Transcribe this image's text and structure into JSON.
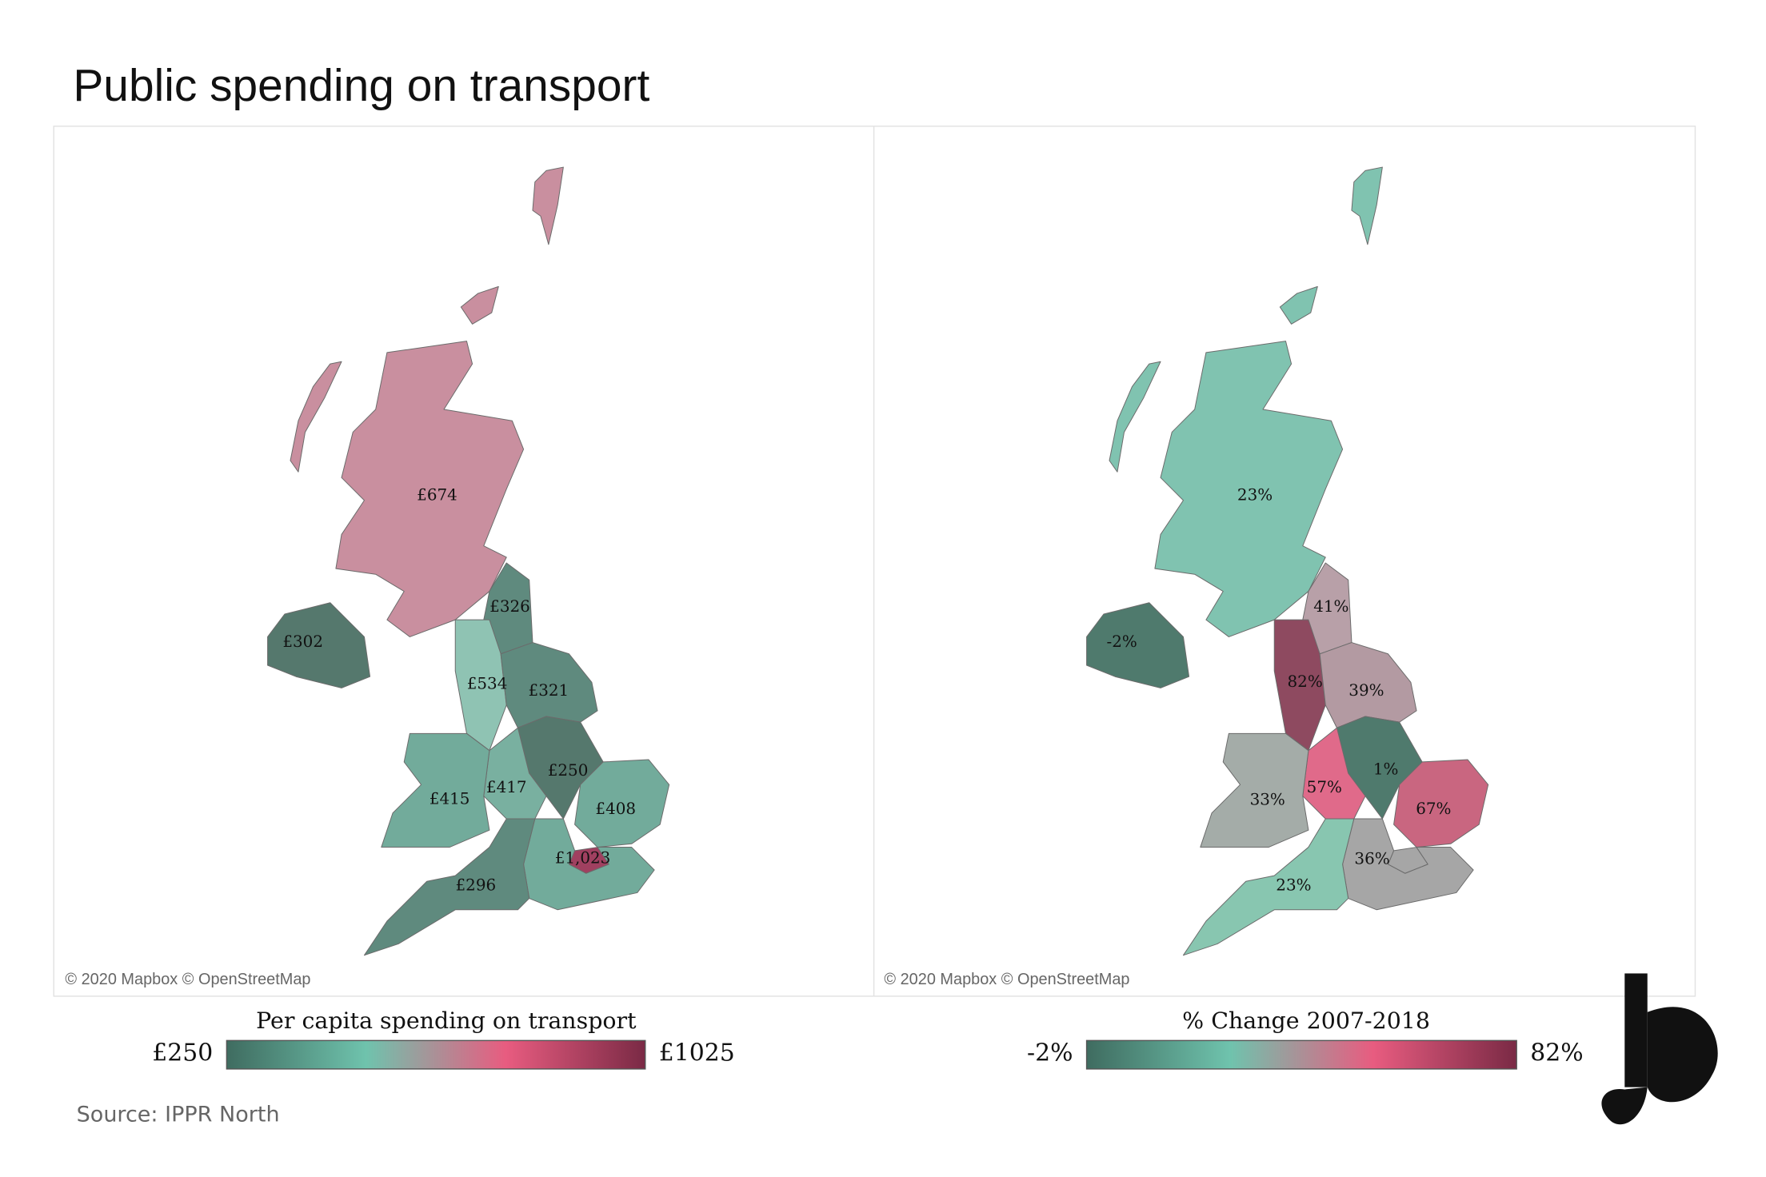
{
  "title": "Public spending on transport",
  "maps": [
    {
      "attribution": "© 2020 Mapbox © OpenStreetMap",
      "legend": {
        "title": "Per capita spending on transport",
        "min_label": "£250",
        "max_label": "£1025",
        "gradient": [
          "#3f6c60",
          "#6fc3ad",
          "#e85c80",
          "#7a2a45"
        ]
      },
      "regions": [
        {
          "label": "£674",
          "color": "#c98f9f"
        },
        {
          "label": "£326",
          "color": "#5f8a7e"
        },
        {
          "label": "£534",
          "color": "#8fc3b3"
        },
        {
          "label": "£321",
          "color": "#5f8a7e"
        },
        {
          "label": "£250",
          "color": "#55786d"
        },
        {
          "label": "£417",
          "color": "#79b0a0"
        },
        {
          "label": "£415",
          "color": "#72ab9b"
        },
        {
          "label": "£408",
          "color": "#72ab9b"
        },
        {
          "label": "£1,023",
          "color": "#a04060"
        },
        {
          "label": null,
          "color": "#72ab9b"
        },
        {
          "label": "£296",
          "color": "#5f8a7e"
        },
        {
          "label": "£302",
          "color": "#55786d"
        }
      ]
    },
    {
      "attribution": "© 2020 Mapbox © OpenStreetMap",
      "legend": {
        "title": "% Change 2007-2018",
        "min_label": "-2%",
        "max_label": "82%",
        "gradient": [
          "#3f6c60",
          "#6fc3ad",
          "#e85c80",
          "#7a2a45"
        ]
      },
      "regions": [
        {
          "label": "23%",
          "color": "#80c3b0"
        },
        {
          "label": "41%",
          "color": "#b8a0a8"
        },
        {
          "label": "82%",
          "color": "#8e4a60"
        },
        {
          "label": "39%",
          "color": "#b39aa2"
        },
        {
          "label": "1%",
          "color": "#4f7a6d"
        },
        {
          "label": "57%",
          "color": "#e06a8a"
        },
        {
          "label": "33%",
          "color": "#a4aca8"
        },
        {
          "label": "67%",
          "color": "#c96680"
        },
        {
          "label": null,
          "color": "#a6a6a6"
        },
        {
          "label": "36%",
          "color": "#a6a6a6"
        },
        {
          "label": "23%",
          "color": "#88c6b0"
        },
        {
          "label": "-2%",
          "color": "#4f7a6d"
        }
      ]
    }
  ],
  "source": "Source: IPPR North"
}
